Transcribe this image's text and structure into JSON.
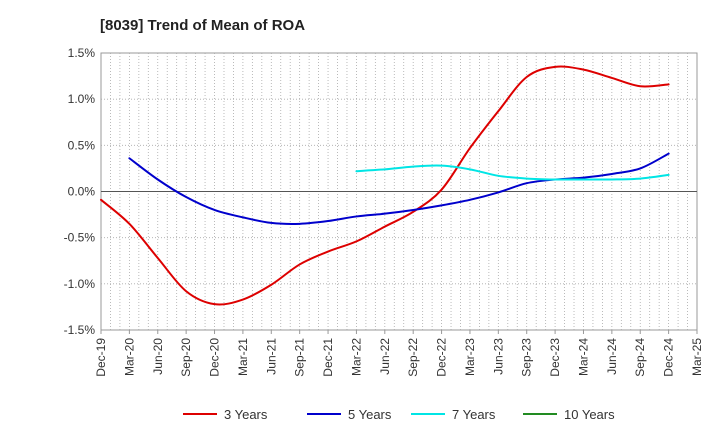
{
  "chart_data": {
    "type": "line",
    "title": "[8039]  Trend of Mean of ROA",
    "xlabel": "",
    "ylabel": "",
    "ylim": [
      -1.5,
      1.5
    ],
    "y_ticks": [
      1.5,
      1.0,
      0.5,
      0.0,
      -0.5,
      -1.0,
      -1.5
    ],
    "y_tick_labels": [
      "1.5%",
      "1.0%",
      "0.5%",
      "0.0%",
      "-0.5%",
      "-1.0%",
      "-1.5%"
    ],
    "x_tick_labels": [
      "Dec-19",
      "Mar-20",
      "Jun-20",
      "Sep-20",
      "Dec-20",
      "Mar-21",
      "Jun-21",
      "Sep-21",
      "Dec-21",
      "Mar-22",
      "Jun-22",
      "Sep-22",
      "Dec-22",
      "Mar-23",
      "Jun-23",
      "Sep-23",
      "Dec-23",
      "Mar-24",
      "Jun-24",
      "Sep-24",
      "Dec-24",
      "Mar-25"
    ],
    "grid": true,
    "legend_position": "bottom",
    "series": [
      {
        "name": "3 Years",
        "color": "#dd0000",
        "values": [
          -0.09,
          -0.35,
          -0.72,
          -1.08,
          -1.22,
          -1.17,
          -1.01,
          -0.79,
          -0.65,
          -0.54,
          -0.38,
          -0.22,
          0.02,
          0.47,
          0.87,
          1.24,
          1.35,
          1.32,
          1.23,
          1.14,
          1.16,
          null
        ]
      },
      {
        "name": "5 Years",
        "color": "#0000cc",
        "values": [
          null,
          0.36,
          0.13,
          -0.06,
          -0.2,
          -0.28,
          -0.34,
          -0.35,
          -0.32,
          -0.27,
          -0.24,
          -0.2,
          -0.15,
          -0.09,
          -0.01,
          0.09,
          0.13,
          0.15,
          0.19,
          0.25,
          0.41,
          null
        ]
      },
      {
        "name": "7 Years",
        "color": "#00e5e5",
        "values": [
          null,
          null,
          null,
          null,
          null,
          null,
          null,
          null,
          null,
          0.22,
          0.24,
          0.27,
          0.28,
          0.24,
          0.17,
          0.14,
          0.13,
          0.13,
          0.13,
          0.14,
          0.18,
          null
        ]
      },
      {
        "name": "10 Years",
        "color": "#228b22",
        "values": [
          null,
          null,
          null,
          null,
          null,
          null,
          null,
          null,
          null,
          null,
          null,
          null,
          null,
          null,
          null,
          null,
          null,
          null,
          null,
          null,
          null,
          null
        ]
      }
    ]
  }
}
